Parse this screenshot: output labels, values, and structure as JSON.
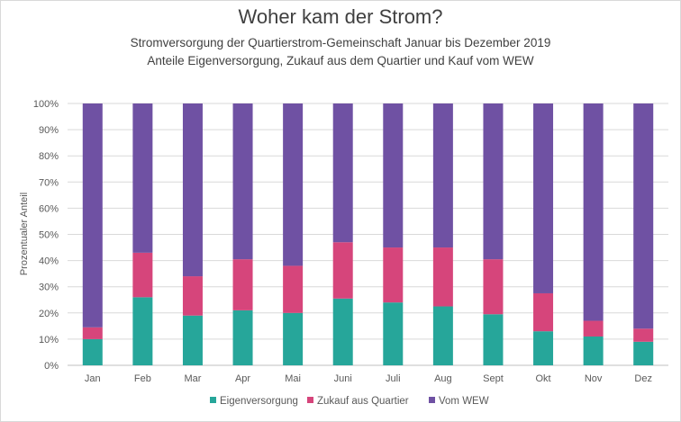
{
  "chart_data": {
    "type": "bar",
    "stacked": true,
    "title": "Woher kam der Strom?",
    "subtitle_lines": [
      "Stromversorgung  der Quartierstrom-Gemeinschaft  Januar bis Dezember 2019",
      "Anteile Eigenversorgung, Zukauf aus dem Quartier und Kauf vom WEW"
    ],
    "ylabel": "Prozentualer Anteil",
    "xlabel": "",
    "ylim": [
      0,
      100
    ],
    "yticks": [
      "0%",
      "10%",
      "20%",
      "30%",
      "40%",
      "50%",
      "60%",
      "70%",
      "80%",
      "90%",
      "100%"
    ],
    "categories": [
      "Jan",
      "Feb",
      "Mar",
      "Apr",
      "Mai",
      "Juni",
      "Juli",
      "Aug",
      "Sept",
      "Okt",
      "Nov",
      "Dez"
    ],
    "series": [
      {
        "name": "Eigenversorgung",
        "color": "#26a69a",
        "values": [
          10,
          26,
          19,
          21,
          20,
          25.5,
          24,
          22.5,
          19.5,
          13,
          11,
          9
        ]
      },
      {
        "name": "Zukauf aus Quartier",
        "color": "#d6457b",
        "values": [
          4.5,
          17,
          15,
          19.5,
          18,
          21.5,
          21,
          22.5,
          21,
          14.5,
          6,
          5
        ]
      },
      {
        "name": "Vom WEW",
        "color": "#6f51a3",
        "values": [
          85.5,
          57,
          66,
          59.5,
          62,
          53,
          55,
          55,
          59.5,
          72.5,
          83,
          86
        ]
      }
    ],
    "grid": true,
    "legend_position": "bottom"
  }
}
